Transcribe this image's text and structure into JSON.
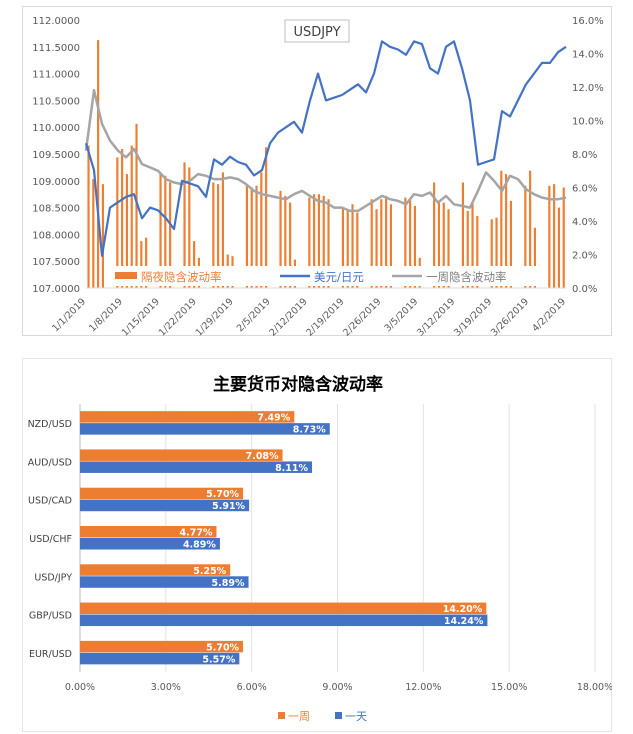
{
  "chart_data": [
    {
      "type": "bar+line",
      "title": "USDJPY",
      "x_ticks": [
        "1/1/2019",
        "1/8/2019",
        "1/15/2019",
        "1/22/2019",
        "1/29/2019",
        "2/5/2019",
        "2/12/2019",
        "2/19/2019",
        "2/26/2019",
        "3/5/2019",
        "3/12/2019",
        "3/19/2019",
        "3/26/2019",
        "4/2/2019"
      ],
      "y_left_ticks": [
        "107.0000",
        "107.5000",
        "108.0000",
        "108.5000",
        "109.0000",
        "109.5000",
        "110.0000",
        "110.5000",
        "111.0000",
        "111.5000",
        "112.0000"
      ],
      "y_right_ticks": [
        "0.0%",
        "2.0%",
        "4.0%",
        "6.0%",
        "8.0%",
        "10.0%",
        "12.0%",
        "14.0%",
        "16.0%"
      ],
      "y_left_range": [
        107,
        112
      ],
      "y_right_range": [
        0,
        16
      ],
      "legend_position": "bottom-inside",
      "series": [
        {
          "name": "隔夜隐含波动率",
          "type": "bar",
          "axis": "right",
          "color": "#ED7D31",
          "values": [
            8.5,
            6.5,
            14.8,
            6.2,
            0,
            0,
            7.8,
            8.3,
            6.8,
            8.5,
            9.8,
            2.8,
            3.0,
            0,
            0,
            6.9,
            6.7,
            6.3,
            0,
            0,
            7.5,
            7.2,
            2.8,
            1.8,
            0,
            0,
            6.3,
            6.2,
            6.9,
            2.0,
            1.9,
            0,
            0,
            6.2,
            6.0,
            6.1,
            6.9,
            8.4,
            0,
            0,
            5.8,
            5.5,
            5.1,
            1.7,
            0,
            0,
            5.4,
            5.6,
            5.6,
            5.5,
            5.3,
            0,
            0,
            4.8,
            4.6,
            5.0,
            4.5,
            0,
            0,
            5.3,
            4.7,
            5.3,
            5.5,
            5.0,
            0,
            0,
            5.4,
            5.3,
            4.9,
            1.8,
            0,
            0,
            6.3,
            5.2,
            5.1,
            4.7,
            0,
            0,
            6.3,
            4.6,
            5.1,
            4.3,
            0,
            0,
            4.1,
            4.2,
            7.0,
            6.8,
            5.2,
            0,
            0,
            6.1,
            7.0,
            3.6,
            0,
            0,
            6.1,
            6.2,
            4.8,
            6.0
          ]
        },
        {
          "name": "美元/日元",
          "type": "line",
          "axis": "left",
          "color": "#4472C4",
          "values": [
            109.7,
            109.2,
            107.6,
            108.5,
            108.6,
            108.7,
            108.75,
            108.3,
            108.5,
            108.45,
            108.3,
            108.1,
            109.0,
            108.95,
            108.9,
            108.7,
            109.4,
            109.3,
            109.45,
            109.35,
            109.3,
            109.1,
            109.2,
            109.7,
            109.9,
            110.0,
            110.1,
            109.9,
            110.5,
            111.0,
            110.5,
            110.55,
            110.6,
            110.7,
            110.8,
            110.65,
            111.0,
            111.6,
            111.5,
            111.45,
            111.35,
            111.6,
            111.55,
            111.1,
            111.0,
            111.5,
            111.6,
            111.1,
            110.5,
            109.3,
            109.35,
            109.4,
            110.3,
            110.2,
            110.5,
            110.8,
            111.0,
            111.2,
            111.2,
            111.4,
            111.5
          ]
        },
        {
          "name": "一周隐含波动率",
          "type": "line",
          "axis": "right",
          "color": "#A5A5A5",
          "values": [
            8.2,
            11.8,
            9.8,
            8.8,
            8.2,
            7.8,
            8.3,
            7.4,
            7.2,
            7.0,
            6.5,
            6.3,
            6.2,
            6.4,
            6.8,
            6.7,
            6.5,
            6.5,
            6.6,
            6.5,
            6.2,
            5.8,
            5.6,
            5.5,
            5.4,
            5.3,
            5.6,
            5.8,
            5.5,
            5.2,
            5.1,
            4.8,
            4.8,
            4.6,
            4.6,
            4.9,
            5.2,
            5.5,
            5.3,
            5.2,
            5.0,
            5.6,
            5.5,
            5.7,
            5.1,
            5.5,
            5.0,
            4.9,
            4.8,
            5.8,
            6.9,
            6.4,
            5.8,
            6.7,
            6.5,
            5.9,
            5.6,
            5.4,
            5.3,
            5.3,
            5.4
          ]
        }
      ]
    },
    {
      "type": "bar",
      "orientation": "horizontal",
      "title": "主要货币对隐含波动率",
      "categories": [
        "NZD/USD",
        "AUD/USD",
        "USD/CAD",
        "USD/CHF",
        "USD/JPY",
        "GBP/USD",
        "EUR/USD"
      ],
      "x_ticks": [
        "0.00%",
        "3.00%",
        "6.00%",
        "9.00%",
        "12.00%",
        "15.00%",
        "18.00%"
      ],
      "x_range": [
        0,
        18
      ],
      "grid": true,
      "legend_position": "bottom-center",
      "series": [
        {
          "name": "一周",
          "color": "#ED7D31",
          "values": [
            7.49,
            7.08,
            5.7,
            4.77,
            5.25,
            14.2,
            5.7
          ],
          "labels": [
            "7.49%",
            "7.08%",
            "5.70%",
            "4.77%",
            "5.25%",
            "14.20%",
            "5.70%"
          ]
        },
        {
          "name": "一天",
          "color": "#4472C4",
          "values": [
            8.73,
            8.11,
            5.91,
            4.89,
            5.89,
            14.24,
            5.57
          ],
          "labels": [
            "8.73%",
            "8.11%",
            "5.91%",
            "4.89%",
            "5.89%",
            "14.24%",
            "5.57%"
          ]
        }
      ]
    }
  ]
}
